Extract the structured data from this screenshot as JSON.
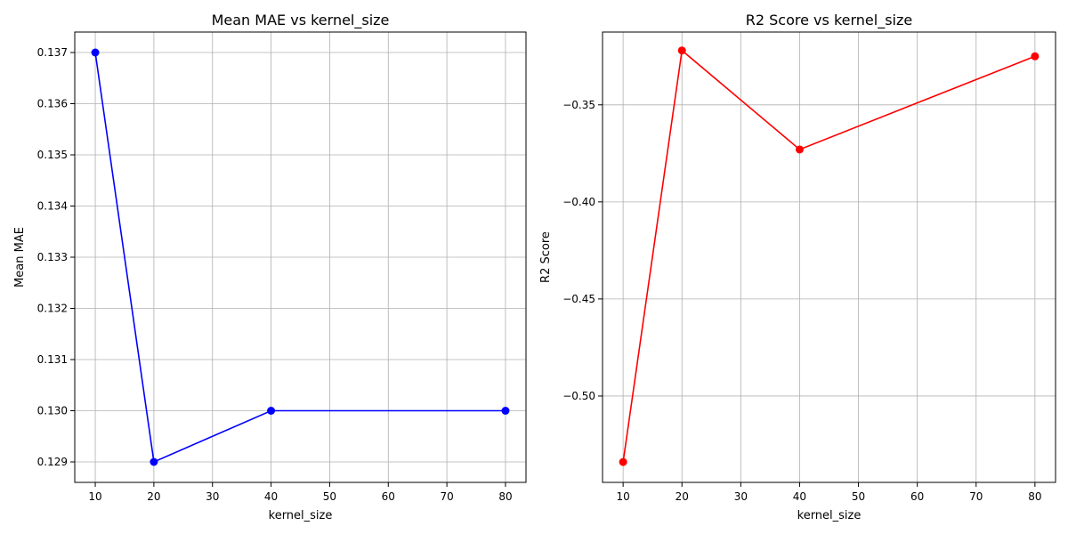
{
  "chart_data": [
    {
      "type": "line",
      "title": "Mean MAE vs kernel_size",
      "xlabel": "kernel_size",
      "ylabel": "Mean MAE",
      "x": [
        10,
        20,
        40,
        80
      ],
      "series": [
        {
          "values": [
            0.137,
            0.129,
            0.13,
            0.13
          ],
          "color": "#0000ff"
        }
      ],
      "xlim": [
        6.5,
        83.5
      ],
      "ylim": [
        0.1286,
        0.1374
      ],
      "xticks": [
        10,
        20,
        30,
        40,
        50,
        60,
        70,
        80
      ],
      "xtick_labels": [
        "10",
        "20",
        "30",
        "40",
        "50",
        "60",
        "70",
        "80"
      ],
      "yticks": [
        0.129,
        0.13,
        0.131,
        0.132,
        0.133,
        0.134,
        0.135,
        0.136,
        0.137
      ],
      "ytick_labels": [
        "0.129",
        "0.130",
        "0.131",
        "0.132",
        "0.133",
        "0.134",
        "0.135",
        "0.136",
        "0.137"
      ],
      "grid": true,
      "marker": "circle"
    },
    {
      "type": "line",
      "title": "R2 Score vs kernel_size",
      "xlabel": "kernel_size",
      "ylabel": "R2 Score",
      "x": [
        10,
        20,
        40,
        80
      ],
      "series": [
        {
          "values": [
            -0.534,
            -0.322,
            -0.373,
            -0.325
          ],
          "color": "#ff0000"
        }
      ],
      "xlim": [
        6.5,
        83.5
      ],
      "ylim": [
        -0.5445,
        -0.3125
      ],
      "xticks": [
        10,
        20,
        30,
        40,
        50,
        60,
        70,
        80
      ],
      "xtick_labels": [
        "10",
        "20",
        "30",
        "40",
        "50",
        "60",
        "70",
        "80"
      ],
      "yticks": [
        -0.5,
        -0.45,
        -0.4,
        -0.35
      ],
      "ytick_labels": [
        "−0.50",
        "−0.45",
        "−0.40",
        "−0.35"
      ],
      "grid": true,
      "marker": "circle"
    }
  ]
}
